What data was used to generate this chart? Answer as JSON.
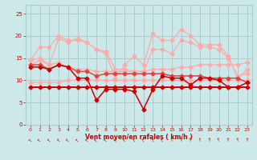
{
  "x": [
    0,
    1,
    2,
    3,
    4,
    5,
    6,
    7,
    8,
    9,
    10,
    11,
    12,
    13,
    14,
    15,
    16,
    17,
    18,
    19,
    20,
    21,
    22,
    23
  ],
  "line_flat": [
    8.5,
    8.5,
    8.5,
    8.5,
    8.5,
    8.5,
    8.5,
    8.5,
    8.5,
    8.5,
    8.5,
    8.5,
    8.5,
    8.5,
    8.5,
    8.5,
    8.5,
    8.5,
    8.5,
    8.5,
    8.5,
    8.5,
    8.5,
    8.5
  ],
  "line_jagged": [
    13.0,
    13.0,
    12.5,
    13.5,
    13.0,
    10.5,
    10.5,
    5.5,
    8.0,
    8.0,
    8.0,
    7.5,
    3.5,
    8.0,
    11.0,
    10.5,
    10.5,
    9.0,
    10.5,
    10.5,
    10.0,
    8.5,
    8.5,
    9.5
  ],
  "line_medium": [
    13.5,
    13.5,
    12.5,
    13.5,
    13.0,
    12.0,
    12.0,
    11.0,
    11.5,
    11.5,
    11.5,
    11.5,
    11.5,
    11.5,
    11.5,
    11.0,
    11.0,
    11.0,
    11.0,
    10.5,
    10.5,
    10.5,
    10.5,
    9.5
  ],
  "line_pink1": [
    14.5,
    17.5,
    17.5,
    20.0,
    19.0,
    19.0,
    18.5,
    17.0,
    16.0,
    10.5,
    13.5,
    15.5,
    13.5,
    20.5,
    19.0,
    19.0,
    21.5,
    20.0,
    18.0,
    18.0,
    18.0,
    15.5,
    10.5,
    12.5
  ],
  "line_pink2": [
    13.5,
    14.5,
    13.5,
    19.5,
    18.5,
    19.5,
    18.5,
    17.0,
    16.5,
    12.5,
    12.5,
    12.0,
    12.0,
    17.0,
    17.0,
    16.0,
    19.0,
    18.5,
    17.5,
    17.5,
    17.0,
    15.0,
    11.0,
    11.5
  ],
  "line_pink3": [
    14.5,
    15.0,
    13.5,
    14.0,
    13.0,
    12.5,
    12.5,
    12.0,
    12.0,
    12.0,
    12.0,
    12.0,
    12.0,
    12.5,
    12.5,
    12.5,
    13.0,
    13.0,
    13.5,
    13.5,
    13.5,
    13.5,
    13.5,
    14.0
  ],
  "line_pink4": [
    9.5,
    9.5,
    9.5,
    9.5,
    10.0,
    10.0,
    10.0,
    10.0,
    10.0,
    10.0,
    10.0,
    10.0,
    10.0,
    10.0,
    10.0,
    10.0,
    10.0,
    10.0,
    10.0,
    10.0,
    10.0,
    10.0,
    10.0,
    10.0
  ],
  "background_color": "#cce8e8",
  "grid_color": "#aacccc",
  "color_dark_red": "#cc0000",
  "color_medium_red": "#dd4444",
  "color_light_pink": "#ffaaaa",
  "xlabel": "Vent moyen/en rafales ( km/h )",
  "ylim": [
    0,
    27
  ],
  "xlim": [
    -0.5,
    23.5
  ],
  "yticks": [
    0,
    5,
    10,
    15,
    20,
    25
  ],
  "xticks": [
    0,
    1,
    2,
    3,
    4,
    5,
    6,
    7,
    8,
    9,
    10,
    11,
    12,
    13,
    14,
    15,
    16,
    17,
    18,
    19,
    20,
    21,
    22,
    23
  ]
}
